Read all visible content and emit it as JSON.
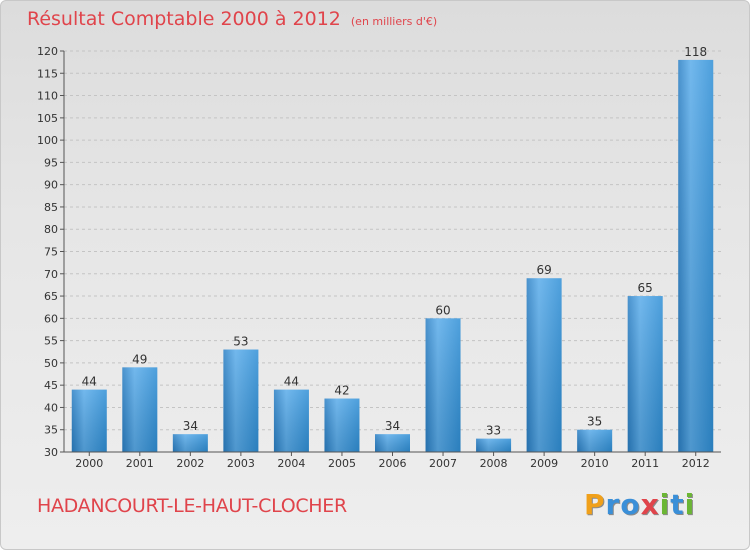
{
  "chart_data": {
    "type": "bar",
    "title": "Résultat Comptable 2000 à 2012",
    "subtitle": "(en milliers d'€)",
    "categories": [
      "2000",
      "2001",
      "2002",
      "2003",
      "2004",
      "2005",
      "2006",
      "2007",
      "2008",
      "2009",
      "2010",
      "2011",
      "2012"
    ],
    "values": [
      44,
      49,
      34,
      53,
      44,
      42,
      34,
      60,
      33,
      69,
      35,
      65,
      118
    ],
    "ylim": [
      30,
      120
    ],
    "yticks": [
      30,
      35,
      40,
      45,
      50,
      55,
      60,
      65,
      70,
      75,
      80,
      85,
      90,
      95,
      100,
      105,
      110,
      115,
      120
    ],
    "xlabel": "",
    "ylabel": "",
    "grid": true,
    "bar_color": "#2f8fd6"
  },
  "commune": "HADANCOURT-LE-HAUT-CLOCHER",
  "logo": {
    "letters": [
      "P",
      "r",
      "o",
      "x",
      "i",
      "t",
      "i"
    ],
    "colors": [
      "#f0a01a",
      "#3a8fd8",
      "#3a8fd8",
      "#e0444b",
      "#6bb634",
      "#3a8fd8",
      "#6bb634"
    ]
  }
}
